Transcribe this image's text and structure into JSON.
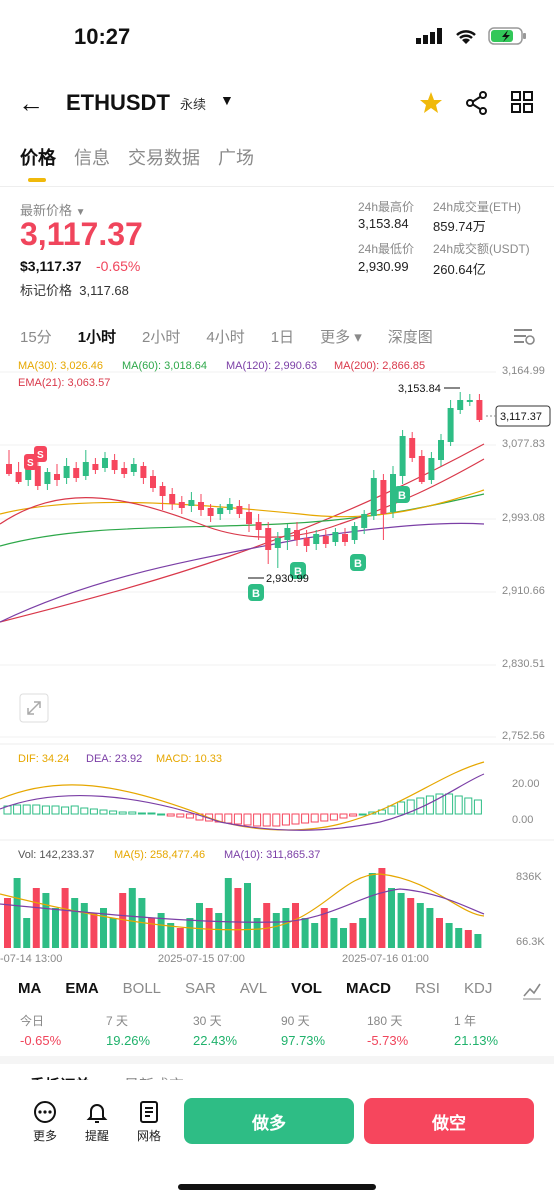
{
  "status": {
    "time": "10:27"
  },
  "header": {
    "symbol": "ETHUSDT",
    "contract": "永续"
  },
  "tabs": [
    "价格",
    "信息",
    "交易数据",
    "广场"
  ],
  "ticker": {
    "latest_label": "最新价格",
    "price": "3,117.37",
    "usd": "$3,117.37",
    "change": "-0.65%",
    "mark_label": "标记价格",
    "mark_price": "3,117.68",
    "high_label": "24h最高价",
    "high": "3,153.84",
    "vol_eth_label": "24h成交量(ETH)",
    "vol_eth": "859.74万",
    "low_label": "24h最低价",
    "low": "2,930.99",
    "vol_usdt_label": "24h成交额(USDT)",
    "vol_usdt": "260.64亿"
  },
  "intervals": [
    "15分",
    "1小时",
    "2小时",
    "4小时",
    "1日",
    "更多 ▾",
    "深度图"
  ],
  "ma_legend": {
    "ma30": "MA(30): 3,026.46",
    "ma60": "MA(60): 3,018.64",
    "ma120": "MA(120): 2,990.63",
    "ma200": "MA(200): 2,866.85",
    "ema21": "EMA(21): 3,063.57"
  },
  "price_axis": [
    "3,164.99",
    "3,077.83",
    "2,993.08",
    "2,910.66",
    "2,830.51",
    "2,752.56"
  ],
  "current_price_tag": "3,117.37",
  "high_marker": "3,153.84",
  "low_marker": "2,930.99",
  "macd_legend": {
    "dif": "DIF: 34.24",
    "dea": "DEA: 23.92",
    "macd": "MACD: 10.33"
  },
  "macd_axis": [
    "20.00",
    "0.00"
  ],
  "vol_legend": {
    "vol": "Vol: 142,233.37",
    "ma5": "MA(5): 258,477.46",
    "ma10": "MA(10): 311,865.37"
  },
  "vol_axis": [
    "836K",
    "66.3K"
  ],
  "time_axis": [
    "-07-14 13:00",
    "2025-07-15 07:00",
    "2025-07-16 01:00"
  ],
  "indicators": [
    "MA",
    "EMA",
    "BOLL",
    "SAR",
    "AVL",
    "VOL",
    "MACD",
    "RSI",
    "KDJ"
  ],
  "performance": [
    {
      "label": "今日",
      "value": "-0.65%"
    },
    {
      "label": "7 天",
      "value": "19.26%"
    },
    {
      "label": "30 天",
      "value": "22.43%"
    },
    {
      "label": "90 天",
      "value": "97.73%"
    },
    {
      "label": "180 天",
      "value": "-5.73%"
    },
    {
      "label": "1 年",
      "value": "21.13%"
    }
  ],
  "peek_tabs": [
    "委托订单",
    "最新成交"
  ],
  "bottom": {
    "more": "更多",
    "alert": "提醒",
    "grid": "网格",
    "long": "做多",
    "short": "做空"
  },
  "colors": {
    "up": "#2ebd85",
    "down": "#f6465d",
    "accent": "#f0b90b"
  }
}
